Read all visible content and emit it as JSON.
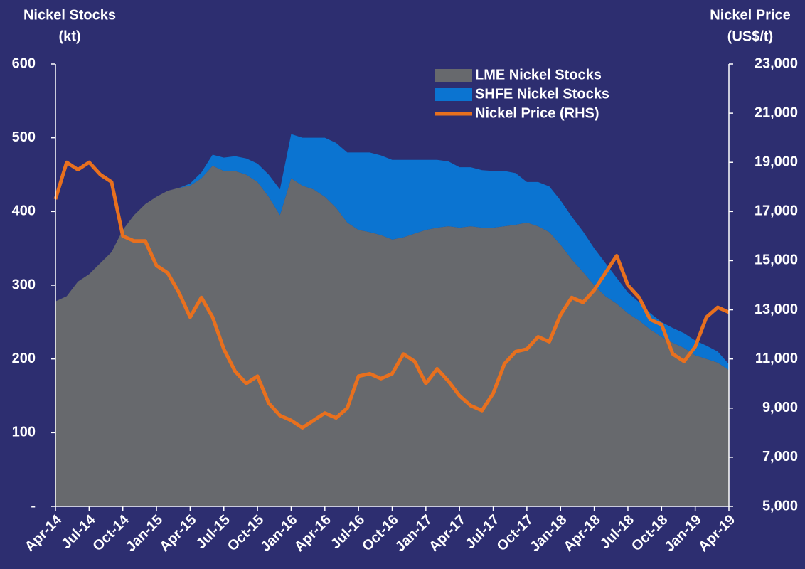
{
  "chart_data": {
    "type": "stacked_area_line",
    "y_label": [
      "Nickel Stocks",
      "(kt)"
    ],
    "y2_label": [
      "Nickel Price",
      "(US$/t)"
    ],
    "categories": [
      "Apr-14",
      null,
      null,
      "Jul-14",
      null,
      null,
      "Oct-14",
      null,
      null,
      "Jan-15",
      null,
      null,
      "Apr-15",
      null,
      null,
      "Jul-15",
      null,
      null,
      "Oct-15",
      null,
      null,
      "Jan-16",
      null,
      null,
      "Apr-16",
      null,
      null,
      "Jul-16",
      null,
      null,
      "Oct-16",
      null,
      null,
      "Jan-17",
      null,
      null,
      "Apr-17",
      null,
      null,
      "Jul-17",
      null,
      null,
      "Oct-17",
      null,
      null,
      "Jan-18",
      null,
      null,
      "Apr-18",
      null,
      null,
      "Jul-18",
      null,
      null,
      "Oct-18",
      null,
      null,
      "Jan-19",
      null,
      null,
      "Apr-19"
    ],
    "series": [
      {
        "name": "LME Nickel Stocks",
        "color": "#67696d",
        "kind": "area",
        "values": [
          278,
          285,
          305,
          315,
          330,
          345,
          375,
          395,
          410,
          420,
          428,
          432,
          435,
          445,
          462,
          455,
          455,
          450,
          440,
          420,
          395,
          445,
          435,
          430,
          420,
          405,
          385,
          375,
          372,
          368,
          362,
          365,
          370,
          375,
          378,
          380,
          378,
          380,
          378,
          378,
          380,
          382,
          385,
          380,
          372,
          355,
          335,
          318,
          300,
          285,
          275,
          262,
          252,
          240,
          230,
          222,
          215,
          205,
          200,
          195,
          185
        ]
      },
      {
        "name": "SHFE Nickel Stocks",
        "color": "#0b74d1",
        "kind": "area",
        "values": [
          0,
          0,
          0,
          0,
          0,
          0,
          0,
          0,
          0,
          0,
          0,
          0,
          3,
          8,
          15,
          18,
          20,
          22,
          25,
          30,
          35,
          60,
          65,
          70,
          80,
          88,
          95,
          105,
          108,
          108,
          108,
          105,
          100,
          95,
          92,
          88,
          82,
          80,
          78,
          77,
          75,
          70,
          55,
          60,
          62,
          60,
          58,
          55,
          50,
          45,
          35,
          28,
          25,
          22,
          20,
          20,
          20,
          20,
          18,
          15,
          8
        ]
      },
      {
        "name": "Nickel Price (RHS)",
        "color": "#e8701e",
        "kind": "line",
        "axis": "y2",
        "values": [
          17500,
          19000,
          18700,
          19000,
          18500,
          18200,
          16000,
          15800,
          15800,
          14800,
          14500,
          13700,
          12700,
          13500,
          12700,
          11400,
          10500,
          10000,
          10300,
          9200,
          8700,
          8500,
          8200,
          8500,
          8800,
          8600,
          9000,
          10300,
          10400,
          10200,
          10400,
          11200,
          10900,
          10000,
          10600,
          10100,
          9500,
          9100,
          8900,
          9600,
          10800,
          11300,
          11400,
          11900,
          11700,
          12800,
          13500,
          13300,
          13800,
          14500,
          15200,
          14000,
          13500,
          12600,
          12400,
          11200,
          10900,
          11500,
          12700,
          13100,
          12900
        ]
      }
    ],
    "ylim": [
      0,
      600
    ],
    "yticks": [
      {
        "value": 0,
        "label": "-"
      },
      100,
      200,
      300,
      400,
      500,
      600
    ],
    "y2lim": [
      5000,
      23000
    ],
    "y2ticks": [
      {
        "value": 5000,
        "label": "5,000"
      },
      {
        "value": 7000,
        "label": "7,000"
      },
      {
        "value": 9000,
        "label": "9,000"
      },
      {
        "value": 11000,
        "label": "11,000"
      },
      {
        "value": 13000,
        "label": "13,000"
      },
      {
        "value": 15000,
        "label": "15,000"
      },
      {
        "value": 17000,
        "label": "17,000"
      },
      {
        "value": 19000,
        "label": "19,000"
      },
      {
        "value": 21000,
        "label": "21,000"
      },
      {
        "value": 23000,
        "label": "23,000"
      }
    ],
    "legend": "top"
  }
}
